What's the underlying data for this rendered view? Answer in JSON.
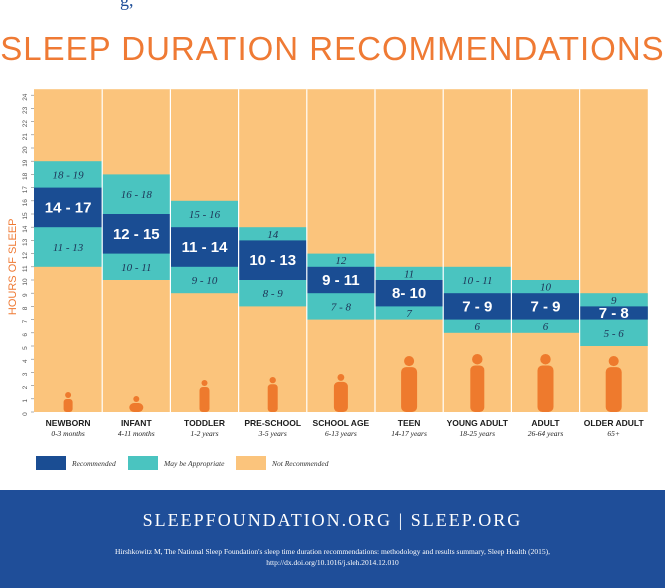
{
  "header": {
    "fragment": "g,"
  },
  "colors": {
    "title": "#ef7a34",
    "recommended": "#1a4d93",
    "may_be_appropriate": "#4ac4c0",
    "not_recommended": "#fbc47c",
    "footer": "#1f4e99",
    "axis_label": "#ef7a34"
  },
  "chart_data": {
    "type": "bar",
    "title": "SLEEP DURATION RECOMMENDATIONS",
    "ylabel": "HOURS OF SLEEP",
    "ylim": [
      0,
      24
    ],
    "yticks": [
      "0",
      "1",
      "2",
      "3",
      "4",
      "5",
      "6",
      "7",
      "8",
      "9",
      "10",
      "11",
      "12",
      "13",
      "14",
      "15",
      "16",
      "17",
      "18",
      "19",
      "20",
      "21",
      "22",
      "23",
      "24"
    ],
    "grid": false,
    "legend_position": "bottom-left",
    "legend": [
      {
        "label": "Recommended",
        "color_key": "recommended"
      },
      {
        "label": "May be Appropriate",
        "color_key": "may_be_appropriate"
      },
      {
        "label": "Not Recommended",
        "color_key": "not_recommended"
      }
    ],
    "groups": [
      {
        "name": "NEWBORN",
        "age": "0-3 months",
        "figure": "baby-sitting-icon",
        "appropriate": [
          11,
          19
        ],
        "recommended": [
          14,
          17
        ],
        "label_rec": "14 - 17",
        "label_upper": "18 - 19",
        "label_lower": "11 - 13"
      },
      {
        "name": "INFANT",
        "age": "4-11 months",
        "figure": "baby-crawling-icon",
        "appropriate": [
          10,
          18
        ],
        "recommended": [
          12,
          15
        ],
        "label_rec": "12 - 15",
        "label_upper": "16 - 18",
        "label_lower": "10 - 11"
      },
      {
        "name": "TODDLER",
        "age": "1-2 years",
        "figure": "toddler-walking-icon",
        "appropriate": [
          9,
          16
        ],
        "recommended": [
          11,
          14
        ],
        "label_rec": "11 - 14",
        "label_upper": "15 - 16",
        "label_lower": "9 - 10"
      },
      {
        "name": "PRE-SCHOOL",
        "age": "3-5 years",
        "figure": "preschooler-icon",
        "appropriate": [
          8,
          14
        ],
        "recommended": [
          10,
          13
        ],
        "label_rec": "10 - 13",
        "label_upper": "14",
        "label_lower": "8 - 9"
      },
      {
        "name": "SCHOOL AGE",
        "age": "6-13 years",
        "figure": "child-jumping-icon",
        "appropriate": [
          7,
          12
        ],
        "recommended": [
          9,
          11
        ],
        "label_rec": "9 - 11",
        "label_upper": "12",
        "label_lower": "7 - 8"
      },
      {
        "name": "TEEN",
        "age": "14-17 years",
        "figure": "teen-standing-icon",
        "appropriate": [
          7,
          11
        ],
        "recommended": [
          8,
          10
        ],
        "label_rec": "8- 10",
        "label_upper": "11",
        "label_lower": "7"
      },
      {
        "name": "YOUNG ADULT",
        "age": "18-25 years",
        "figure": "young-adult-icon",
        "appropriate": [
          6,
          11
        ],
        "recommended": [
          7,
          9
        ],
        "label_rec": "7 - 9",
        "label_upper": "10 - 11",
        "label_lower": "6"
      },
      {
        "name": "ADULT",
        "age": "26-64 years",
        "figure": "adult-woman-icon",
        "appropriate": [
          6,
          10
        ],
        "recommended": [
          7,
          9
        ],
        "label_rec": "7 - 9",
        "label_upper": "10",
        "label_lower": "6"
      },
      {
        "name": "OLDER ADULT",
        "age": "65+",
        "figure": "older-adult-cane-icon",
        "appropriate": [
          5,
          9
        ],
        "recommended": [
          7,
          8
        ],
        "label_rec": "7 - 8",
        "label_upper": "9",
        "label_lower": "5 - 6"
      }
    ]
  },
  "footer": {
    "sites": "SLEEPFOUNDATION.ORG  |  SLEEP.ORG",
    "citation_line1": "Hirshkowitz M, The National Sleep Foundation's sleep time duration recommendations: methodology and results summary, Sleep Health (2015),",
    "citation_line2": "http://dx.doi.org/10.1016/j.sleh.2014.12.010"
  }
}
